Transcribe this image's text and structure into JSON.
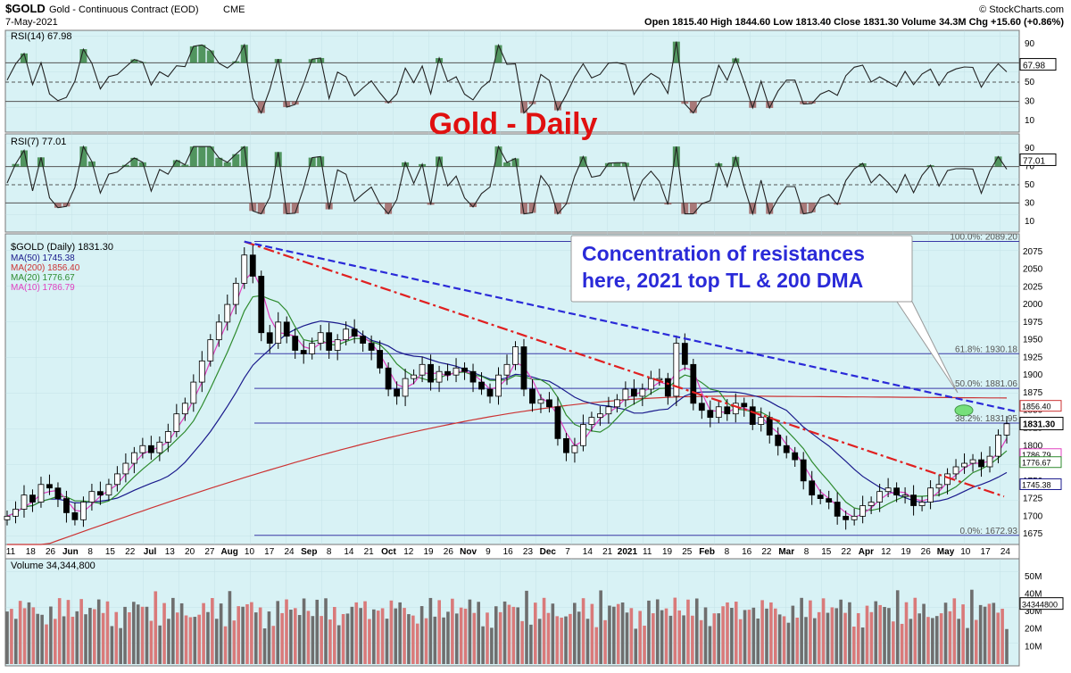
{
  "header": {
    "symbol": "$GOLD",
    "name": "Gold - Continuous Contract (EOD)",
    "exchange": "CME",
    "date": "7-May-2021",
    "ohlc": "Open 1815.40  High 1844.60  Low 1813.40  Close 1831.30  Volume 34.3M  Chg +15.60 (+0.86%)",
    "brand": "© StockCharts.com"
  },
  "chart_data": [
    {
      "type": "line",
      "panel": "rsi14",
      "title": "RSI(14) 67.98",
      "last_value": "67.98",
      "ylim": [
        0,
        100
      ],
      "ticks": [
        "90",
        "70",
        "50",
        "30",
        "10"
      ],
      "guides": [
        70,
        50,
        30
      ]
    },
    {
      "type": "line",
      "panel": "rsi7",
      "title": "RSI(7) 77.01",
      "last_value": "77.01",
      "ylim": [
        0,
        100
      ],
      "ticks": [
        "90",
        "70",
        "50",
        "30",
        "10"
      ],
      "guides": [
        70,
        50,
        30
      ]
    },
    {
      "type": "line",
      "panel": "price",
      "title": "$GOLD (Daily) 1831.30",
      "annotation_title": "Gold - Daily",
      "callout": "Concentration of resistances here, 2021 top TL & 200 DMA",
      "ylim": [
        1660,
        2100
      ],
      "y_ticks": [
        2075,
        2050,
        2025,
        2000,
        1975,
        1950,
        1925,
        1900,
        1875,
        1850,
        1825,
        1800,
        1775,
        1750,
        1725,
        1700,
        1675
      ],
      "x_labels": [
        "11",
        "18",
        "26",
        "Jun",
        "8",
        "15",
        "22",
        "Jul",
        "13",
        "20",
        "27",
        "Aug",
        "10",
        "17",
        "24",
        "Sep",
        "8",
        "14",
        "21",
        "Oct",
        "12",
        "19",
        "26",
        "Nov",
        "9",
        "16",
        "23",
        "Dec",
        "7",
        "14",
        "21",
        "2021",
        "11",
        "19",
        "25",
        "Feb",
        "8",
        "16",
        "22",
        "Mar",
        "8",
        "15",
        "22",
        "Apr",
        "12",
        "19",
        "26",
        "May",
        "10",
        "17",
        "24"
      ],
      "last_price": "1831.30",
      "fib_levels": [
        {
          "label": "100.0%: 2089.20",
          "value": 2089.2
        },
        {
          "label": "61.8%: 1930.18",
          "value": 1930.18
        },
        {
          "label": "50.0%: 1881.06",
          "value": 1881.06
        },
        {
          "label": "38.2%: 1831.95",
          "value": 1831.95
        },
        {
          "label": "0.0%: 1672.93",
          "value": 1672.93
        }
      ],
      "series": [
        {
          "name": "MA(50) 1745.38",
          "color": "#1a1a8c",
          "last": "1745.38"
        },
        {
          "name": "MA(200) 1856.40",
          "color": "#cc3333",
          "last": "1856.40"
        },
        {
          "name": "MA(20) 1776.67",
          "color": "#2e8b2e",
          "last": "1776.67"
        },
        {
          "name": "MA(10) 1786.79",
          "color": "#e040c0",
          "last": "1786.79"
        }
      ],
      "close_approx": [
        1700,
        1710,
        1730,
        1720,
        1745,
        1740,
        1725,
        1705,
        1695,
        1720,
        1735,
        1730,
        1745,
        1760,
        1775,
        1790,
        1800,
        1790,
        1805,
        1820,
        1845,
        1860,
        1890,
        1920,
        1950,
        1975,
        2000,
        2030,
        2070,
        2040,
        1960,
        1945,
        1975,
        1955,
        1935,
        1930,
        1945,
        1960,
        1935,
        1950,
        1965,
        1955,
        1945,
        1935,
        1910,
        1880,
        1870,
        1895,
        1900,
        1915,
        1890,
        1905,
        1900,
        1910,
        1905,
        1890,
        1880,
        1870,
        1900,
        1915,
        1940,
        1880,
        1860,
        1865,
        1855,
        1810,
        1790,
        1800,
        1830,
        1840,
        1845,
        1855,
        1865,
        1880,
        1870,
        1880,
        1895,
        1895,
        1870,
        1945,
        1915,
        1860,
        1850,
        1840,
        1855,
        1845,
        1860,
        1855,
        1830,
        1840,
        1815,
        1800,
        1790,
        1780,
        1750,
        1730,
        1725,
        1720,
        1700,
        1695,
        1700,
        1715,
        1720,
        1735,
        1740,
        1730,
        1730,
        1715,
        1720,
        1740,
        1745,
        1760,
        1770,
        1775,
        1780,
        1770,
        1785,
        1815,
        1831
      ]
    },
    {
      "type": "bar",
      "panel": "volume",
      "title": "Volume 34,344,800",
      "last_value": "34344800",
      "y_ticks": [
        "50M",
        "40M",
        "30M",
        "20M",
        "10M"
      ],
      "up_color": "#d97a7a",
      "down_color": "#6e6e6e"
    }
  ]
}
